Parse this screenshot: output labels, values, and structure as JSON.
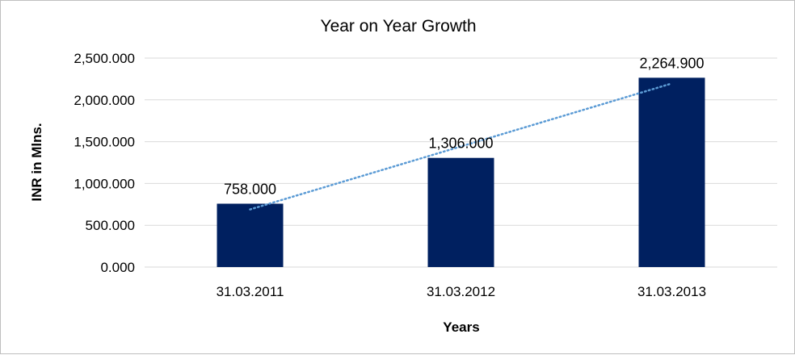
{
  "chart_data": {
    "type": "bar",
    "title": "Year on Year Growth",
    "xlabel": "Years",
    "ylabel": "INR in Mlns.",
    "categories": [
      "31.03.2011",
      "31.03.2012",
      "31.03.2013"
    ],
    "values": [
      758.0,
      1306.0,
      2264.9
    ],
    "data_labels": [
      "758.000",
      "1,306.000",
      "2,264.900"
    ],
    "yticks": [
      0,
      500,
      1000,
      1500,
      2000,
      2500
    ],
    "ytick_labels": [
      "0.000",
      "500.000",
      "1,000.000",
      "1,500.000",
      "2,000.000",
      "2,500.000"
    ],
    "ylim": [
      0,
      2500
    ],
    "grid": true,
    "legend": "none",
    "trendline": "linear",
    "colors": {
      "bar": "#002060",
      "trendline": "#5b9bd5"
    }
  }
}
